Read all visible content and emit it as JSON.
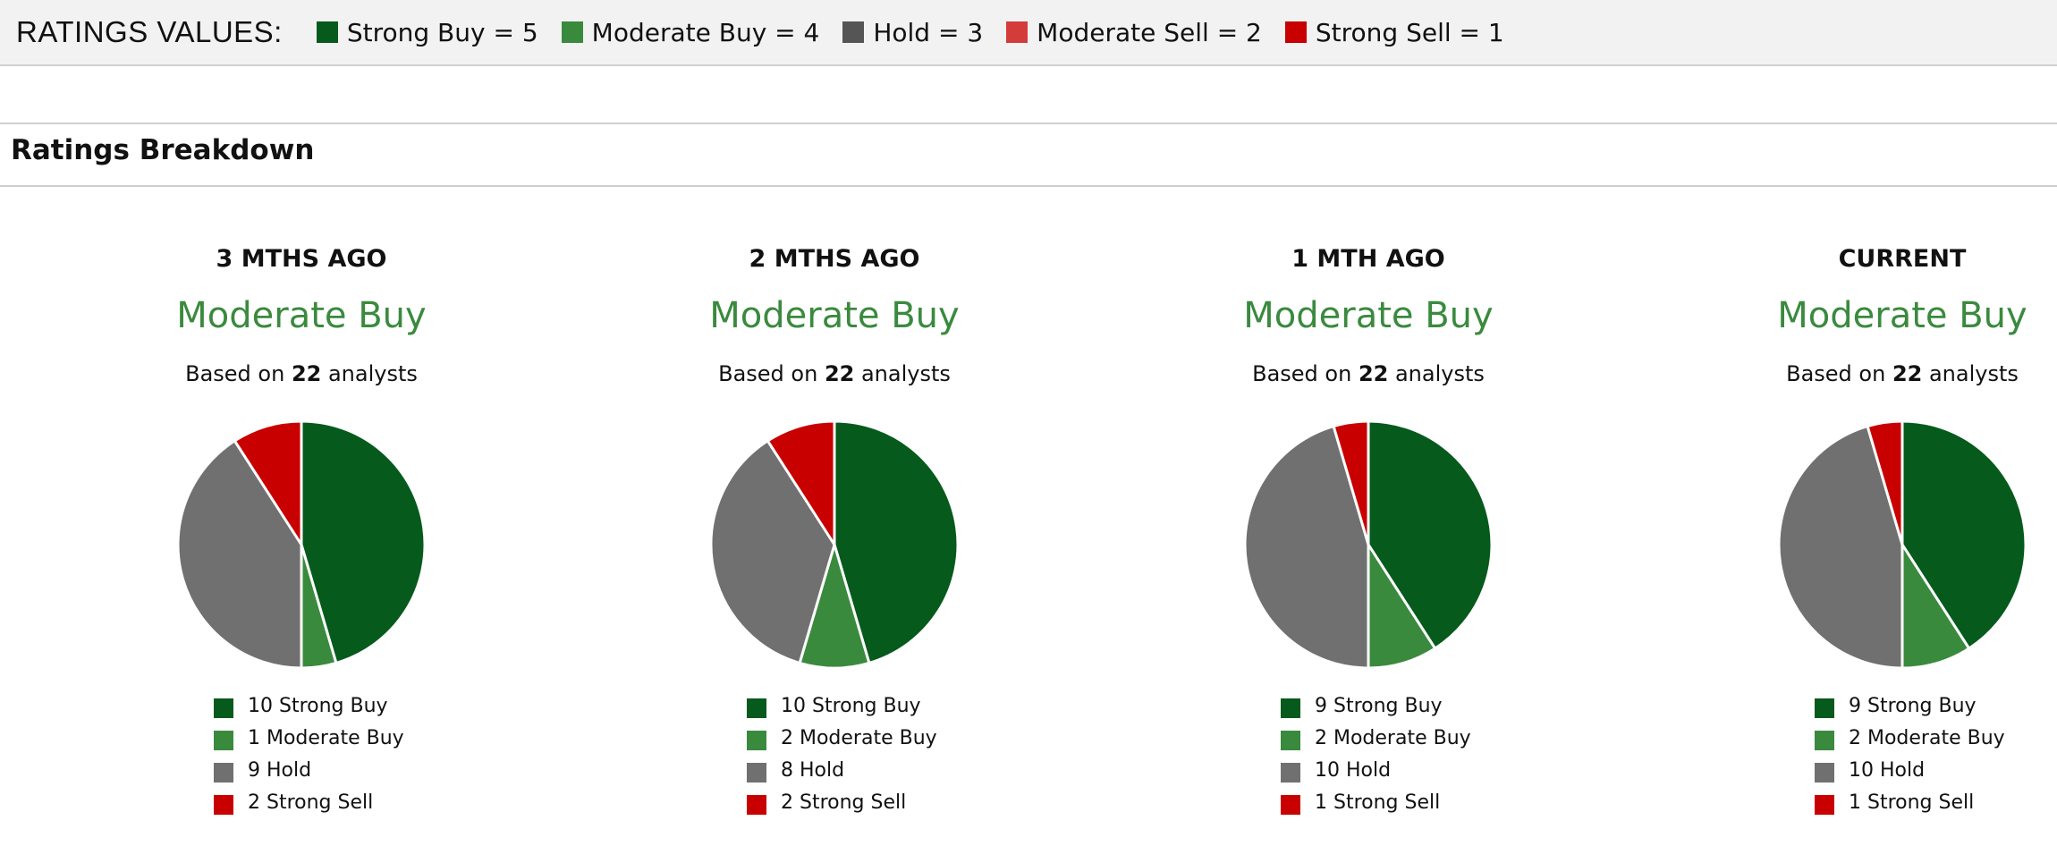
{
  "colors": {
    "strong_buy": "#055a1c",
    "moderate_buy": "#3a8a3e",
    "hold": "#707070",
    "moderate_sell": "#d43c3c",
    "strong_sell": "#c80000",
    "consensus_text": "#3a8a3e"
  },
  "ratings_values": {
    "title": "RATINGS VALUES:",
    "items": [
      {
        "label": "Strong Buy = 5",
        "color": "#055a1c"
      },
      {
        "label": "Moderate Buy = 4",
        "color": "#3a8a3e"
      },
      {
        "label": "Hold = 3",
        "color": "#555555"
      },
      {
        "label": "Moderate Sell = 2",
        "color": "#d43c3c"
      },
      {
        "label": "Strong Sell = 1",
        "color": "#c80000"
      }
    ]
  },
  "section": {
    "title": "Ratings Breakdown"
  },
  "panels": [
    {
      "period": "3 MTHS AGO",
      "consensus": "Moderate Buy",
      "based_prefix": "Based on ",
      "analysts": "22",
      "based_suffix": " analysts",
      "legend": [
        "10 Strong Buy",
        "1 Moderate Buy",
        "9 Hold",
        "2 Strong Sell"
      ]
    },
    {
      "period": "2 MTHS AGO",
      "consensus": "Moderate Buy",
      "based_prefix": "Based on ",
      "analysts": "22",
      "based_suffix": " analysts",
      "legend": [
        "10 Strong Buy",
        "2 Moderate Buy",
        "8 Hold",
        "2 Strong Sell"
      ]
    },
    {
      "period": "1 MTH AGO",
      "consensus": "Moderate Buy",
      "based_prefix": "Based on ",
      "analysts": "22",
      "based_suffix": " analysts",
      "legend": [
        "9 Strong Buy",
        "2 Moderate Buy",
        "10 Hold",
        "1 Strong Sell"
      ]
    },
    {
      "period": "CURRENT",
      "consensus": "Moderate Buy",
      "based_prefix": "Based on ",
      "analysts": "22",
      "based_suffix": " analysts",
      "legend": [
        "9 Strong Buy",
        "2 Moderate Buy",
        "10 Hold",
        "1 Strong Sell"
      ]
    }
  ],
  "chart_data": [
    {
      "type": "pie",
      "title": "3 MTHS AGO",
      "categories": [
        "Strong Buy",
        "Moderate Buy",
        "Hold",
        "Strong Sell"
      ],
      "values": [
        10,
        1,
        9,
        2
      ]
    },
    {
      "type": "pie",
      "title": "2 MTHS AGO",
      "categories": [
        "Strong Buy",
        "Moderate Buy",
        "Hold",
        "Strong Sell"
      ],
      "values": [
        10,
        2,
        8,
        2
      ]
    },
    {
      "type": "pie",
      "title": "1 MTH AGO",
      "categories": [
        "Strong Buy",
        "Moderate Buy",
        "Hold",
        "Strong Sell"
      ],
      "values": [
        9,
        2,
        10,
        1
      ]
    },
    {
      "type": "pie",
      "title": "CURRENT",
      "categories": [
        "Strong Buy",
        "Moderate Buy",
        "Hold",
        "Strong Sell"
      ],
      "values": [
        9,
        2,
        10,
        1
      ]
    }
  ]
}
